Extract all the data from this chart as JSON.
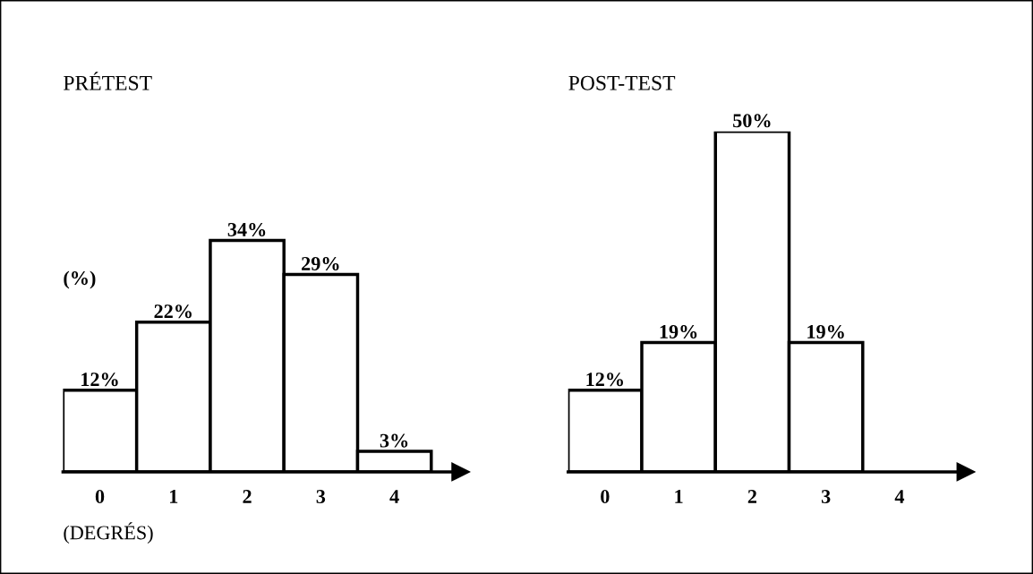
{
  "chart_data": [
    {
      "type": "bar",
      "title": "PRÉTEST",
      "ylabel": "(%)",
      "xlabel": "(DEGRÉS)",
      "categories": [
        "0",
        "1",
        "2",
        "3",
        "4"
      ],
      "values": [
        12,
        22,
        34,
        29,
        3
      ],
      "value_labels": [
        "12%",
        "22%",
        "34%",
        "29%",
        "3%"
      ],
      "color": "#ffffff",
      "tick_labels": "x",
      "grid": false,
      "legend": false
    },
    {
      "type": "bar",
      "title": "POST-TEST",
      "categories": [
        "0",
        "1",
        "2",
        "3",
        "4"
      ],
      "values": [
        12,
        19,
        50,
        19,
        null
      ],
      "value_labels": [
        "12%",
        "19%",
        "50%",
        "19%",
        null
      ],
      "color": "#ffffff",
      "tick_labels": "x",
      "grid": false,
      "legend": false
    }
  ]
}
